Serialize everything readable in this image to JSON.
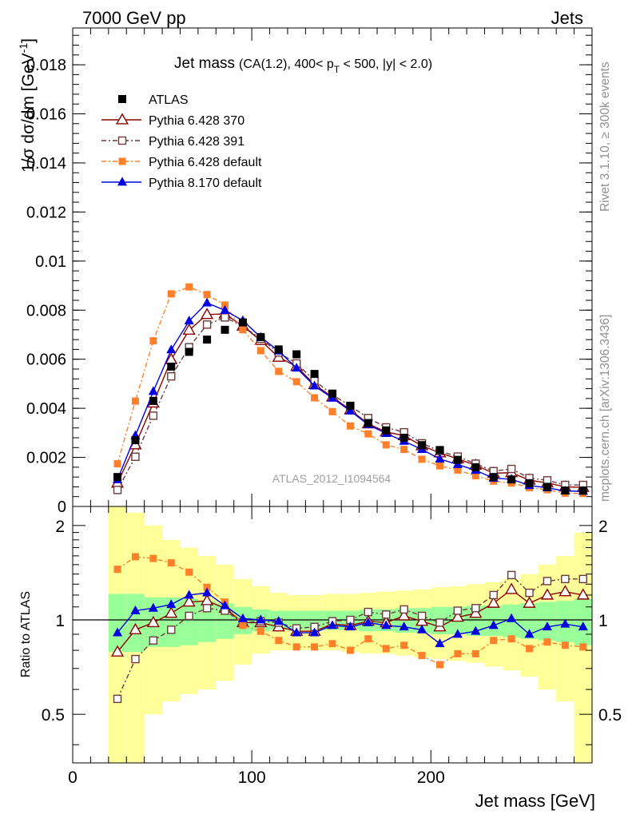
{
  "header": {
    "left": "7000 GeV pp",
    "right": "Jets"
  },
  "side_labels": {
    "top": "Rivet 3.1.10, ≥ 300k events",
    "bottom": "mcplots.cern.ch [arXiv:1306.3436]"
  },
  "chart_data": {
    "type": "line",
    "title": "Jet mass",
    "subtitle_parts": {
      "pre": "(CA(1.2), 400< p",
      "sub": "T",
      "post": " < 500, |y| < 2.0)"
    },
    "ylabel": "1/σ dσ/dm [GeV",
    "ylabel_sup": "-1",
    "ylabel_post": "]",
    "xlabel": "Jet mass [GeV]",
    "ratio_ylabel": "Ratio to ATLAS",
    "watermark": "ATLAS_2012_I1094564",
    "xlim": [
      0,
      290
    ],
    "ylim": [
      0,
      0.0195
    ],
    "ratio_ylim": [
      0.35,
      2.3
    ],
    "ratio_scale": "log",
    "x_ticks": [
      "0",
      "100",
      "200"
    ],
    "x_tick_values": [
      0,
      100,
      200
    ],
    "y_ticks": [
      "0",
      "0.002",
      "0.004",
      "0.006",
      "0.008",
      "0.01",
      "0.012",
      "0.014",
      "0.016",
      "0.018"
    ],
    "y_tick_values": [
      0,
      0.002,
      0.004,
      0.006,
      0.008,
      0.01,
      0.012,
      0.014,
      0.016,
      0.018
    ],
    "ratio_ticks": [
      "0.5",
      "1",
      "2"
    ],
    "ratio_tick_values": [
      0.5,
      1,
      2
    ],
    "legend_position": "top-left",
    "x": [
      25,
      35,
      45,
      55,
      65,
      75,
      85,
      95,
      105,
      115,
      125,
      135,
      145,
      155,
      165,
      175,
      185,
      195,
      205,
      215,
      225,
      235,
      245,
      255,
      265,
      275,
      285
    ],
    "data": {
      "name": "ATLAS",
      "values": [
        0.0012,
        0.0027,
        0.0043,
        0.0057,
        0.0063,
        0.0068,
        0.0072,
        0.0075,
        0.0069,
        0.0064,
        0.0062,
        0.0054,
        0.0046,
        0.0041,
        0.0034,
        0.0031,
        0.0028,
        0.0025,
        0.0023,
        0.0019,
        0.0016,
        0.0012,
        0.0011,
        0.00095,
        0.0008,
        0.00065,
        0.00065
      ],
      "band_inner": [
        [
          0.79,
          1.21
        ],
        [
          0.79,
          1.21
        ],
        [
          0.82,
          1.18
        ],
        [
          0.82,
          1.18
        ],
        [
          0.83,
          1.17
        ],
        [
          0.85,
          1.15
        ],
        [
          0.87,
          1.13
        ],
        [
          0.9,
          1.1
        ],
        [
          0.92,
          1.08
        ],
        [
          0.93,
          1.07
        ],
        [
          0.93,
          1.07
        ],
        [
          0.93,
          1.07
        ],
        [
          0.93,
          1.07
        ],
        [
          0.93,
          1.07
        ],
        [
          0.92,
          1.08
        ],
        [
          0.92,
          1.08
        ],
        [
          0.91,
          1.09
        ],
        [
          0.91,
          1.09
        ],
        [
          0.9,
          1.1
        ],
        [
          0.9,
          1.1
        ],
        [
          0.89,
          1.11
        ],
        [
          0.89,
          1.11
        ],
        [
          0.88,
          1.12
        ],
        [
          0.87,
          1.13
        ],
        [
          0.86,
          1.14
        ],
        [
          0.85,
          1.15
        ],
        [
          0.83,
          1.17
        ]
      ],
      "band_outer": [
        [
          0.35,
          2.3
        ],
        [
          0.35,
          2.2
        ],
        [
          0.5,
          2.0
        ],
        [
          0.55,
          1.8
        ],
        [
          0.58,
          1.7
        ],
        [
          0.6,
          1.6
        ],
        [
          0.64,
          1.5
        ],
        [
          0.72,
          1.35
        ],
        [
          0.78,
          1.28
        ],
        [
          0.8,
          1.22
        ],
        [
          0.8,
          1.2
        ],
        [
          0.8,
          1.2
        ],
        [
          0.8,
          1.21
        ],
        [
          0.79,
          1.21
        ],
        [
          0.78,
          1.22
        ],
        [
          0.78,
          1.23
        ],
        [
          0.77,
          1.24
        ],
        [
          0.76,
          1.25
        ],
        [
          0.75,
          1.27
        ],
        [
          0.74,
          1.28
        ],
        [
          0.73,
          1.3
        ],
        [
          0.71,
          1.32
        ],
        [
          0.69,
          1.35
        ],
        [
          0.66,
          1.4
        ],
        [
          0.6,
          1.5
        ],
        [
          0.55,
          1.6
        ],
        [
          0.35,
          1.9
        ]
      ]
    },
    "series": [
      {
        "name": "Pythia 6.428 370",
        "color": "#8b0000",
        "marker": "triangle-open",
        "dash": "",
        "ratio": [
          0.79,
          0.93,
          0.98,
          1.05,
          1.14,
          1.15,
          1.09,
          0.98,
          0.98,
          0.95,
          0.92,
          0.92,
          0.97,
          0.96,
          0.99,
          0.98,
          1.03,
          0.99,
          0.95,
          1.02,
          1.05,
          1.13,
          1.25,
          1.13,
          1.2,
          1.23,
          1.2
        ]
      },
      {
        "name": "Pythia 6.428 391",
        "color": "#6b3a3a",
        "marker": "square-open",
        "dash": "6,3,2,3",
        "ratio": [
          0.56,
          0.75,
          0.86,
          0.93,
          1.03,
          1.09,
          1.07,
          0.98,
          0.99,
          0.98,
          0.94,
          0.95,
          0.99,
          1.0,
          1.06,
          1.04,
          1.08,
          1.03,
          0.98,
          1.07,
          1.09,
          1.2,
          1.39,
          1.22,
          1.33,
          1.35,
          1.35
        ]
      },
      {
        "name": "Pythia 6.428 default",
        "color": "#ff7f2a",
        "marker": "square-filled",
        "dash": "6,3,2,3",
        "ratio": [
          1.45,
          1.59,
          1.57,
          1.52,
          1.42,
          1.27,
          1.14,
          0.96,
          0.92,
          0.86,
          0.82,
          0.82,
          0.84,
          0.8,
          0.87,
          0.81,
          0.83,
          0.77,
          0.72,
          0.78,
          0.78,
          0.86,
          0.87,
          0.81,
          0.85,
          0.83,
          0.82
        ]
      },
      {
        "name": "Pythia 8.170 default",
        "color": "#0000e0",
        "marker": "triangle-filled",
        "dash": "",
        "ratio": [
          0.91,
          1.07,
          1.09,
          1.12,
          1.2,
          1.22,
          1.11,
          1.01,
          1.0,
          0.99,
          0.91,
          0.91,
          0.96,
          0.95,
          0.98,
          0.96,
          0.95,
          0.93,
          0.84,
          0.9,
          0.92,
          0.96,
          1.01,
          0.9,
          0.95,
          0.97,
          0.95
        ]
      }
    ]
  }
}
